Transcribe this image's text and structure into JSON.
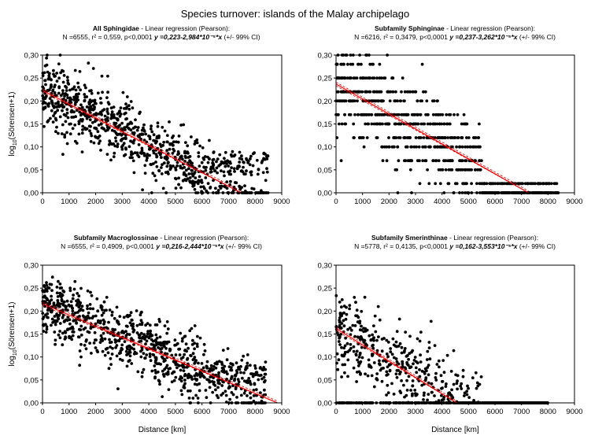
{
  "figure": {
    "title": "Species turnover: islands of the Malay archipelago"
  },
  "colors": {
    "points": "#000000",
    "fit_line": "#ff0000",
    "ci_line": "#cc0000",
    "background": "#ffffff"
  },
  "chart_data": [
    {
      "type": "scatter",
      "panel": "top-left",
      "title_bold": "All Sphingidae",
      "title_rest": " - Linear regression (Pearson):",
      "stats": "N =6555, r² = 0,559, p<0,0001",
      "equation": "y =0,223-2,984*10⁻⁵*x",
      "ci_label": " (+/- 99% CI)",
      "xlabel": "",
      "ylabel": "log10(Sörensen+1)",
      "xlim": [
        0,
        9000
      ],
      "ylim": [
        0,
        0.3
      ],
      "xticks": [
        "0",
        "1000",
        "2000",
        "3000",
        "4000",
        "5000",
        "6000",
        "7000",
        "8000",
        "9000"
      ],
      "yticks": [
        "0,00",
        "0,05",
        "0,10",
        "0,15",
        "0,20",
        "0,25",
        "0,30"
      ],
      "grid": false,
      "regression": {
        "intercept": 0.223,
        "slope": -2.984e-05
      },
      "points_hint": {
        "n_points": 6555,
        "x_range": [
          0,
          8500
        ],
        "band": "decreasing"
      }
    },
    {
      "type": "scatter",
      "panel": "top-right",
      "title_bold": "Subfamily Sphinginae",
      "title_rest": " - Linear regression (Pearson):",
      "stats": "N =6216, r² = 0,3479, p<0,0001",
      "equation": "y =0,237-3,262*10⁻⁵*x",
      "ci_label": " (+/- 99% CI)",
      "xlabel": "",
      "ylabel": "",
      "xlim": [
        0,
        9000
      ],
      "ylim": [
        0,
        0.3
      ],
      "xticks": [
        "0",
        "1000",
        "2000",
        "3000",
        "4000",
        "5000",
        "6000",
        "7000",
        "8000",
        "9000"
      ],
      "yticks": [
        "0,00",
        "0,05",
        "0,10",
        "0,15",
        "0,20",
        "0,25",
        "0,30"
      ],
      "grid": false,
      "regression": {
        "intercept": 0.237,
        "slope": -3.262e-05
      },
      "points_hint": {
        "n_points": 6216,
        "x_range": [
          0,
          8400
        ],
        "band": "discrete-levels"
      }
    },
    {
      "type": "scatter",
      "panel": "bottom-left",
      "title_bold": "Subfamily Macroglossinae",
      "title_rest": " - Linear regression (Pearson):",
      "stats": "N =6555, r² = 0,4909, p<0,0001",
      "equation": "y =0,216-2,444*10⁻⁵*x",
      "ci_label": " (+/- 99% CI)",
      "xlabel": "Distance [km]",
      "ylabel": "log10(Sörensen+1)",
      "xlim": [
        0,
        9000
      ],
      "ylim": [
        0,
        0.3
      ],
      "xticks": [
        "0",
        "1000",
        "2000",
        "3000",
        "4000",
        "5000",
        "6000",
        "7000",
        "8000",
        "9000"
      ],
      "yticks": [
        "0,00",
        "0,05",
        "0,10",
        "0,15",
        "0,20",
        "0,25",
        "0,30"
      ],
      "grid": false,
      "regression": {
        "intercept": 0.216,
        "slope": -2.444e-05
      },
      "points_hint": {
        "n_points": 6555,
        "x_range": [
          0,
          8400
        ],
        "band": "decreasing"
      }
    },
    {
      "type": "scatter",
      "panel": "bottom-right",
      "title_bold": "Subfamily Smerinthinae",
      "title_rest": " - Linear regression (Pearson):",
      "stats": "N =5778, r² = 0,4135, p<0,0001",
      "equation": "y =0,162-3,553*10⁻⁵*x",
      "ci_label": " (+/- 99% CI)",
      "xlabel": "Distance [km]",
      "ylabel": "",
      "xlim": [
        0,
        9000
      ],
      "ylim": [
        0,
        0.3
      ],
      "xticks": [
        "0",
        "1000",
        "2000",
        "3000",
        "4000",
        "5000",
        "6000",
        "7000",
        "8000",
        "9000"
      ],
      "yticks": [
        "0,00",
        "0,05",
        "0,10",
        "0,15",
        "0,20",
        "0,25",
        "0,30"
      ],
      "grid": false,
      "regression": {
        "intercept": 0.162,
        "slope": -3.553e-05
      },
      "points_hint": {
        "n_points": 5778,
        "x_range": [
          0,
          8000
        ],
        "band": "zero-heavy"
      }
    }
  ]
}
